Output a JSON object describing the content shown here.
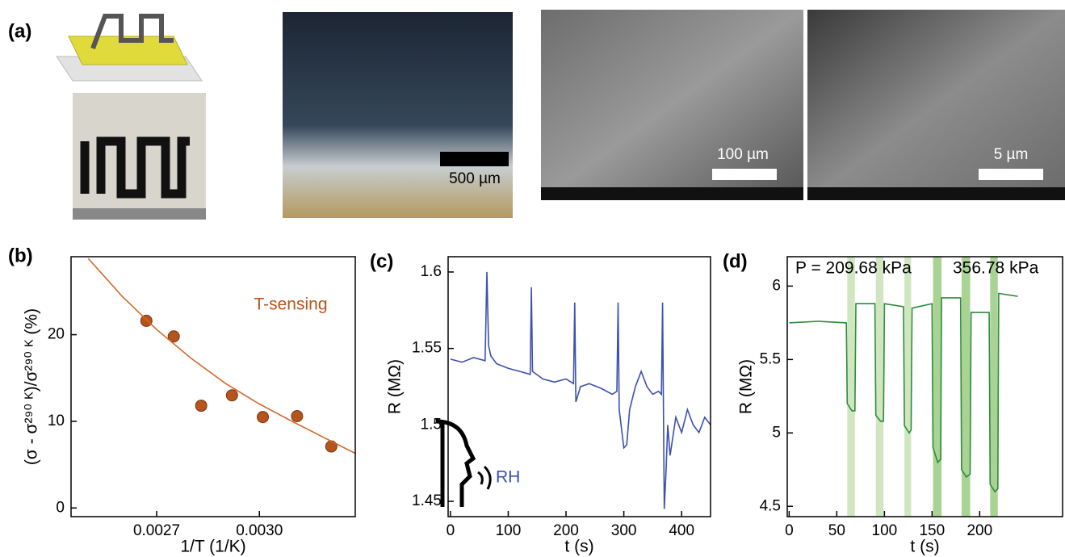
{
  "panel_labels": [
    "(a)",
    "(b)",
    "(c)",
    "(d)"
  ],
  "scale_bars": [
    "500 µm",
    "100 µm",
    "5 µm"
  ],
  "chart_data": [
    {
      "type": "scatter",
      "xlabel": "1/T (1/K)",
      "ylabel": "(σ - σ²⁹⁰ ᴷ)/σ²⁹⁰ ᴷ (%)",
      "xlim": [
        0.00245,
        0.00328
      ],
      "ylim": [
        -1,
        29
      ],
      "xticks": [
        0.0027,
        {
          "value": 0.003,
          "label": "0.0030"
        }
      ],
      "yticks": [
        0,
        10,
        20
      ],
      "series": [
        {
          "style": "markers",
          "color": "#b5541c",
          "x": [
            0.00267,
            0.00275,
            0.00283,
            0.00292,
            0.00301,
            0.00311,
            0.00321
          ],
          "values": [
            21.6,
            19.8,
            11.8,
            13.0,
            10.5,
            10.6,
            7.1
          ]
        },
        {
          "style": "line",
          "color": "#d2692a",
          "x": [
            0.0025,
            0.0026,
            0.0027,
            0.0028,
            0.0029,
            0.003,
            0.0031,
            0.0032,
            0.00328
          ],
          "values": [
            28.8,
            24.4,
            20.6,
            17.3,
            14.4,
            12.0,
            9.9,
            7.9,
            6.3
          ]
        }
      ],
      "annotations": [
        {
          "text": "T-sensing",
          "color": "#b5541c"
        }
      ]
    },
    {
      "type": "line",
      "xlabel": "t (s)",
      "ylabel": "R (MΩ)",
      "xlim": [
        -4,
        450
      ],
      "ylim": [
        1.44,
        1.61
      ],
      "xticks": [
        0,
        100,
        200,
        300,
        400
      ],
      "yticks": [
        1.45,
        1.5,
        1.55,
        1.6
      ],
      "series": [
        {
          "style": "line",
          "color": "#3b50b0",
          "x": [
            0,
            20,
            40,
            60,
            63,
            66,
            70,
            80,
            100,
            120,
            138,
            140,
            142,
            160,
            180,
            200,
            213,
            215,
            217,
            225,
            240,
            260,
            280,
            288,
            290,
            292,
            300,
            305,
            310,
            320,
            330,
            340,
            350,
            360,
            365,
            367,
            370,
            373,
            376,
            380,
            390,
            400,
            410,
            420,
            430,
            440,
            450
          ],
          "values": [
            1.543,
            1.541,
            1.544,
            1.542,
            1.6,
            1.552,
            1.545,
            1.54,
            1.537,
            1.535,
            1.533,
            1.59,
            1.535,
            1.53,
            1.528,
            1.53,
            1.527,
            1.58,
            1.515,
            1.525,
            1.527,
            1.524,
            1.52,
            1.522,
            1.58,
            1.51,
            1.485,
            1.487,
            1.51,
            1.525,
            1.535,
            1.525,
            1.52,
            1.522,
            1.52,
            1.58,
            1.445,
            1.47,
            1.5,
            1.48,
            1.505,
            1.495,
            1.51,
            1.5,
            1.495,
            1.505,
            1.5
          ]
        }
      ],
      "annotations": [
        {
          "text": "RH",
          "color": "#3b50b0"
        }
      ]
    },
    {
      "type": "line",
      "xlabel": "t (s)",
      "ylabel": "R (MΩ)",
      "xlim": [
        -2,
        287
      ],
      "ylim": [
        4.43,
        6.2
      ],
      "xticks": [
        0,
        50,
        100,
        150,
        200
      ],
      "yticks": [
        4.5,
        5,
        5.5,
        6
      ],
      "bands": [
        {
          "start": 61,
          "end": 69,
          "color": "#cfe6c0"
        },
        {
          "start": 91,
          "end": 99,
          "color": "#cfe6c0"
        },
        {
          "start": 121,
          "end": 128,
          "color": "#cfe6c0"
        },
        {
          "start": 151,
          "end": 160,
          "color": "#a9d394"
        },
        {
          "start": 181,
          "end": 190,
          "color": "#a9d394"
        },
        {
          "start": 211,
          "end": 219,
          "color": "#a9d394"
        }
      ],
      "series": [
        {
          "style": "line",
          "color": "#2e8b3a",
          "x": [
            0,
            30,
            60,
            61,
            66,
            69,
            70,
            90,
            91,
            96,
            99,
            100,
            120,
            121,
            126,
            128,
            129,
            150,
            151,
            156,
            159,
            160,
            180,
            181,
            186,
            190,
            191,
            210,
            211,
            216,
            219,
            220,
            240
          ],
          "values": [
            5.75,
            5.76,
            5.75,
            5.2,
            5.15,
            5.15,
            5.88,
            5.88,
            5.12,
            5.08,
            5.08,
            5.88,
            5.86,
            5.05,
            5.0,
            5.02,
            5.85,
            5.88,
            4.9,
            4.8,
            4.82,
            5.92,
            5.92,
            4.75,
            4.7,
            4.72,
            5.82,
            5.82,
            4.65,
            4.6,
            4.62,
            5.95,
            5.93
          ]
        }
      ],
      "annotations": [
        {
          "text": "P = 209.68 kPa",
          "color": "#000000"
        },
        {
          "text": "356.78 kPa",
          "color": "#000000"
        }
      ]
    }
  ]
}
